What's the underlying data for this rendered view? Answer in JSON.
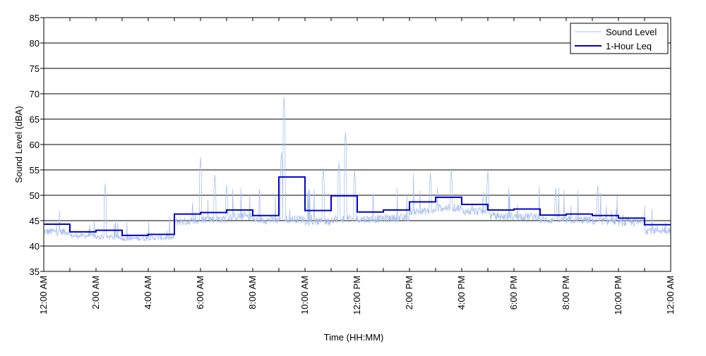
{
  "chart_data": {
    "type": "line",
    "title": "",
    "xlabel": "Time (HH:MM)",
    "ylabel": "Sound Level (dBA)",
    "xlim": [
      0,
      24
    ],
    "ylim": [
      35,
      85
    ],
    "y_ticks": [
      35,
      40,
      45,
      50,
      55,
      60,
      65,
      70,
      75,
      80,
      85
    ],
    "x_tick_labels": [
      "12:00 AM",
      "2:00 AM",
      "4:00 AM",
      "6:00 AM",
      "8:00 AM",
      "10:00 AM",
      "12:00 PM",
      "2:00 PM",
      "4:00 PM",
      "6:00 PM",
      "8:00 PM",
      "10:00 PM",
      "12:00 AM"
    ],
    "grid": "horizontal",
    "legend_position": "top-right",
    "colors": {
      "sound_level": "#a8bff0",
      "leq": "#0000cc"
    },
    "series": [
      {
        "name": "Sound Level",
        "hourly_baseline": [
          42.5,
          41.8,
          41.5,
          41.3,
          41.4,
          44.5,
          45.0,
          45.5,
          44.8,
          45.0,
          44.5,
          45.0,
          45.0,
          45.2,
          46.5,
          47.2,
          46.5,
          45.5,
          45.5,
          44.8,
          44.8,
          44.6,
          44.3,
          42.8
        ],
        "peaks": [
          {
            "x": 2.35,
            "y": 52.3
          },
          {
            "x": 6.0,
            "y": 57.5
          },
          {
            "x": 6.55,
            "y": 54.0
          },
          {
            "x": 7.0,
            "y": 52.0
          },
          {
            "x": 9.2,
            "y": 69.3
          },
          {
            "x": 9.1,
            "y": 58.5
          },
          {
            "x": 10.7,
            "y": 55.5
          },
          {
            "x": 11.3,
            "y": 56.5
          },
          {
            "x": 11.55,
            "y": 62.5
          },
          {
            "x": 11.9,
            "y": 55.0
          },
          {
            "x": 14.8,
            "y": 54.5
          },
          {
            "x": 15.6,
            "y": 55.2
          },
          {
            "x": 17.0,
            "y": 54.8
          },
          {
            "x": 19.6,
            "y": 51.5
          },
          {
            "x": 21.2,
            "y": 51.6
          }
        ]
      },
      {
        "name": "1-Hour Leq",
        "x": [
          0,
          1,
          2,
          3,
          4,
          5,
          6,
          7,
          8,
          9,
          10,
          11,
          12,
          13,
          14,
          15,
          16,
          17,
          18,
          19,
          20,
          21,
          22,
          23
        ],
        "values": [
          44.3,
          42.8,
          43.1,
          42.1,
          42.3,
          46.3,
          46.6,
          47.1,
          46.0,
          53.6,
          47.0,
          49.9,
          46.7,
          47.1,
          48.7,
          49.6,
          48.2,
          47.1,
          47.3,
          46.1,
          46.3,
          46.0,
          45.5,
          44.2
        ]
      }
    ]
  }
}
